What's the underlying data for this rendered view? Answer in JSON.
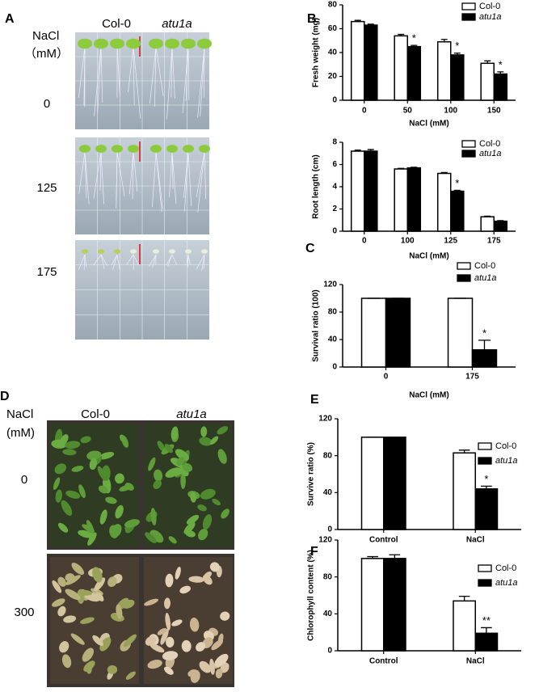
{
  "figure_a": {
    "letter": "A",
    "columns": [
      "Col-0",
      "atu1a"
    ],
    "row_header": [
      "NaCl",
      "（mM）"
    ],
    "rows": [
      "0",
      "125",
      "175"
    ]
  },
  "figure_d": {
    "letter": "D",
    "columns": [
      "Col-0",
      "atu1a"
    ],
    "row_header": [
      "NaCl",
      "(mM)"
    ],
    "rows": [
      "0",
      "300"
    ]
  },
  "chart_data": [
    {
      "type": "bar",
      "panel": "B",
      "y_label": "Fresh weight (mg)",
      "x_label": "NaCl (mM)",
      "categories": [
        "0",
        "50",
        "100",
        "150"
      ],
      "ylim": [
        0,
        80
      ],
      "yticks": [
        0,
        20,
        40,
        60,
        80
      ],
      "series": [
        {
          "name": "Col-0",
          "color": "#ffffff",
          "values": [
            66,
            54,
            49,
            31
          ],
          "errors": [
            1,
            1.2,
            2,
            2
          ]
        },
        {
          "name": "atu1a",
          "color": "#000000",
          "values": [
            63,
            45,
            38,
            22
          ],
          "errors": [
            0.8,
            1,
            1.5,
            1.8
          ],
          "labels": [
            null,
            "*",
            "*",
            "*"
          ]
        }
      ]
    },
    {
      "type": "bar",
      "y_label": "Root length (cm)",
      "x_label": "NaCl (mM)",
      "categories": [
        "0",
        "100",
        "125",
        "175"
      ],
      "ylim": [
        0,
        8
      ],
      "yticks": [
        0,
        2,
        4,
        6,
        8
      ],
      "series": [
        {
          "name": "Col-0",
          "color": "#ffffff",
          "values": [
            7.2,
            5.6,
            5.2,
            1.3
          ],
          "errors": [
            0.1,
            0.05,
            0.08,
            0.05
          ]
        },
        {
          "name": "atu1a",
          "color": "#000000",
          "values": [
            7.2,
            5.7,
            3.6,
            0.9
          ],
          "errors": [
            0.15,
            0.05,
            0.08,
            0.05
          ],
          "labels": [
            null,
            null,
            "*",
            null
          ]
        }
      ]
    },
    {
      "type": "bar",
      "panel": "C",
      "y_label": "Survival ratio (100)",
      "x_label": "NaCl (mM)",
      "categories": [
        "0",
        "175"
      ],
      "ylim": [
        0,
        120
      ],
      "yticks": [
        0,
        40,
        80,
        120
      ],
      "series": [
        {
          "name": "Col-0",
          "color": "#ffffff",
          "values": [
            100,
            100
          ],
          "errors": [
            0,
            0
          ]
        },
        {
          "name": "atu1a",
          "color": "#000000",
          "values": [
            100,
            25
          ],
          "errors": [
            0,
            14
          ],
          "labels": [
            null,
            "*"
          ]
        }
      ]
    },
    {
      "type": "bar",
      "panel": "E",
      "y_label": "Survive ratio (%)",
      "categories": [
        "Control",
        "NaCl"
      ],
      "ylim": [
        0,
        120
      ],
      "yticks": [
        0,
        40,
        80,
        120
      ],
      "series": [
        {
          "name": "Col-0",
          "color": "#ffffff",
          "values": [
            100,
            83
          ],
          "errors": [
            0,
            3
          ]
        },
        {
          "name": "atu1a",
          "color": "#000000",
          "values": [
            100,
            44
          ],
          "errors": [
            0,
            3
          ],
          "labels": [
            null,
            "*"
          ]
        }
      ]
    },
    {
      "type": "bar",
      "panel": "F",
      "y_label": "Chlorophyll content (%)",
      "categories": [
        "Control",
        "NaCl"
      ],
      "ylim": [
        0,
        120
      ],
      "yticks": [
        0,
        40,
        80,
        120
      ],
      "series": [
        {
          "name": "Col-0",
          "color": "#ffffff",
          "values": [
            100,
            54
          ],
          "errors": [
            2,
            5
          ]
        },
        {
          "name": "atu1a",
          "color": "#000000",
          "values": [
            100,
            19
          ],
          "errors": [
            4,
            6
          ],
          "labels": [
            null,
            "**"
          ]
        }
      ]
    }
  ]
}
